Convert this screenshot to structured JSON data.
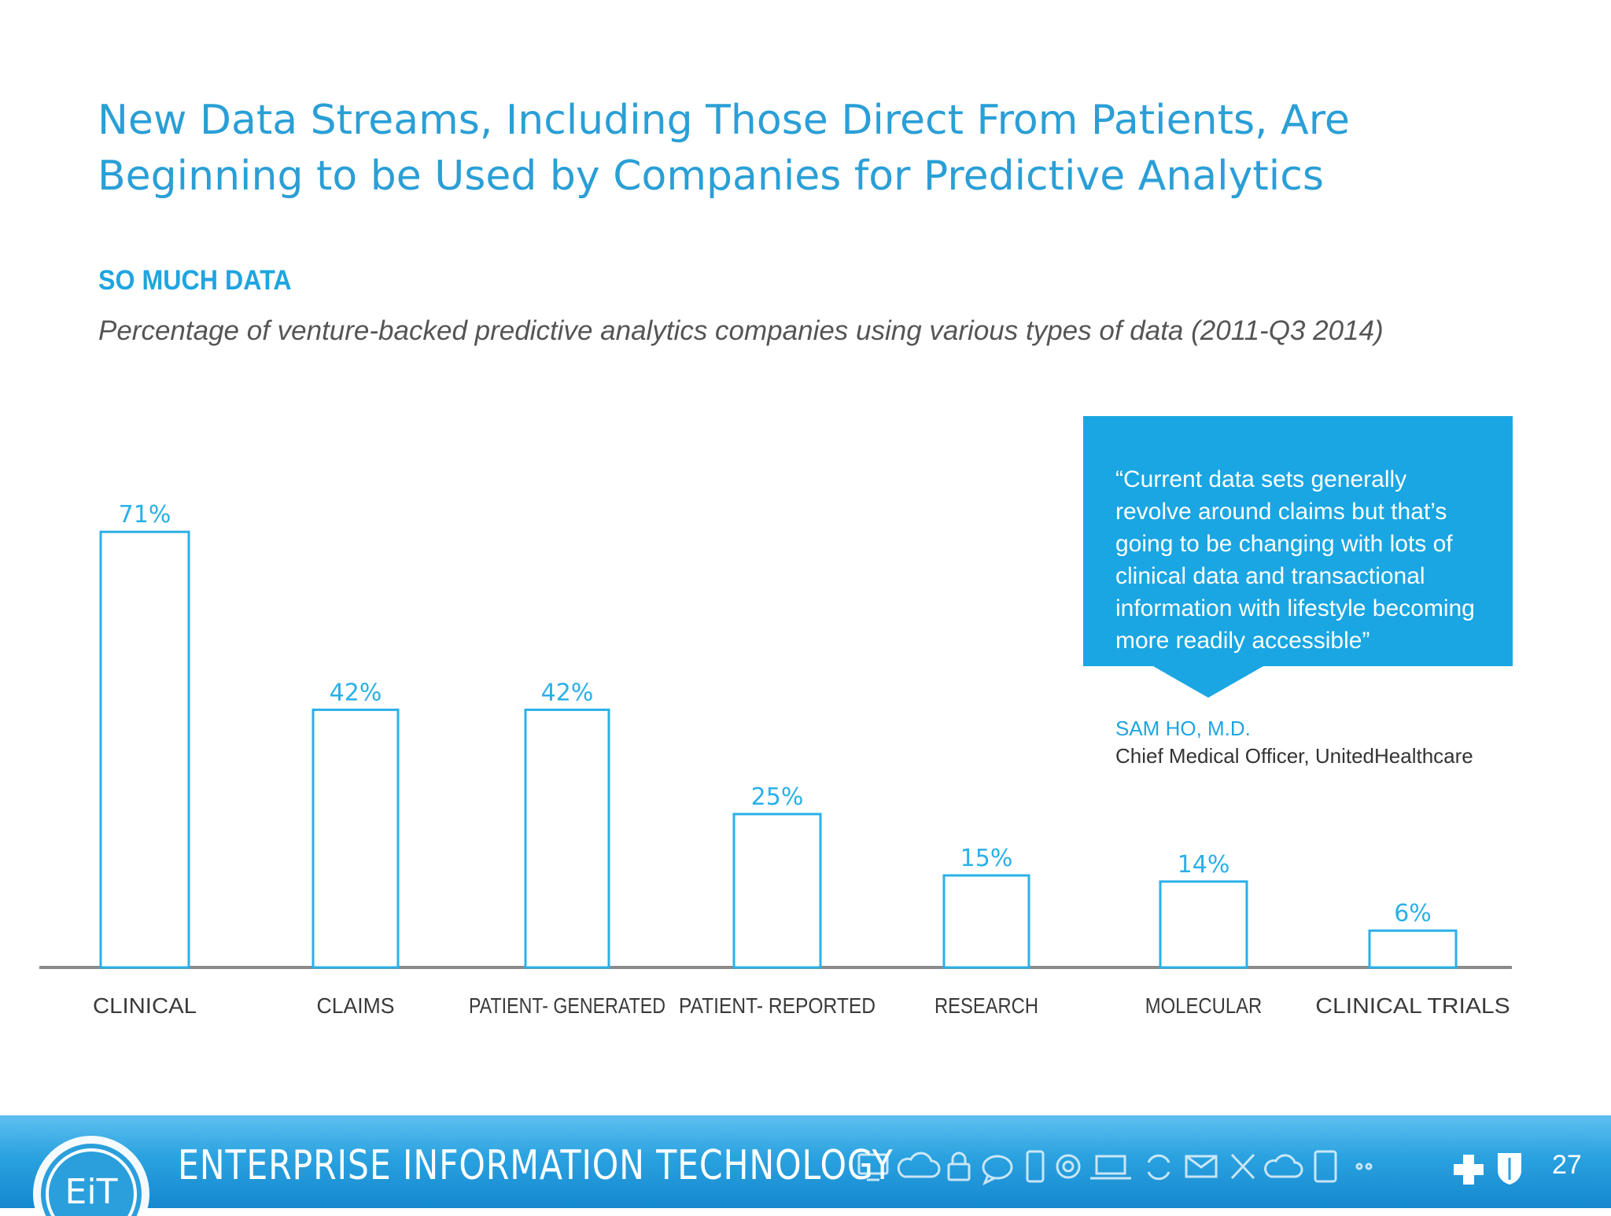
{
  "slide": {
    "title": "New Data Streams, Including Those Direct From Patients, Are Beginning to be Used by Companies for Predictive Analytics",
    "section_label": "SO MUCH DATA",
    "subtitle": "Percentage of venture-backed predictive analytics companies using various types of data (2011-Q3 2014)",
    "page_number": "27"
  },
  "quote": {
    "text": "“Current data sets generally revolve around claims but that’s going to be changing with lots of clinical data and transactional information with lifestyle becoming more readily accessible”",
    "author": "SAM HO, M.D.",
    "role": "Chief Medical Officer, UnitedHealthcare"
  },
  "footer": {
    "logo_text": "EiT",
    "title": "ENTERPRISE INFORMATION TECHNOLOGY",
    "icons": [
      "monitor-icon",
      "cloud-icon",
      "lock-icon",
      "chat-icon",
      "phone-icon",
      "gear-icon",
      "laptop-icon",
      "sync-icon",
      "mail-icon",
      "tools-icon",
      "cloud-outline-icon",
      "tablet-icon",
      "more-icon"
    ],
    "partner_logo": "blue-cross-blue-shield-logo"
  },
  "colors": {
    "accent": "#1ea5e0",
    "bar_stroke": "#2ab0e8",
    "axis": "#8a8a8a",
    "footer": "#2aa2e0"
  },
  "chart_data": {
    "type": "bar",
    "categories": [
      "CLINICAL",
      "CLAIMS",
      "PATIENT- GENERATED",
      "PATIENT- REPORTED",
      "RESEARCH",
      "MOLECULAR",
      "CLINICAL TRIALS"
    ],
    "values": [
      71,
      42,
      42,
      25,
      15,
      14,
      6
    ],
    "value_labels": [
      "71%",
      "42%",
      "42%",
      "25%",
      "15%",
      "14%",
      "6%"
    ],
    "unit": "%",
    "ylim": [
      0,
      100
    ],
    "grid": false,
    "legend": "none"
  }
}
